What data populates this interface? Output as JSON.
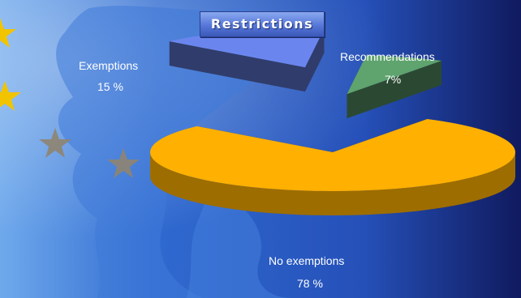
{
  "chart_data": {
    "type": "pie",
    "title": "Restrictions",
    "categories": [
      "Exemptions",
      "Recommendations",
      "No exemptions"
    ],
    "values": [
      15,
      7,
      78
    ],
    "value_labels": [
      "15 %",
      "7%",
      "78 %"
    ],
    "colors": {
      "Exemptions": "#6a86ee",
      "Recommendations": "#5fa36e",
      "No exemptions": "#ffb000"
    },
    "exploded": [
      "Exemptions",
      "Recommendations"
    ],
    "style": "3d"
  },
  "background": {
    "primary": "#2b62c9",
    "light": "#7fb6f0",
    "dark": "#121c66",
    "star": "#8f8470",
    "star_yellow": "#f2c400"
  }
}
